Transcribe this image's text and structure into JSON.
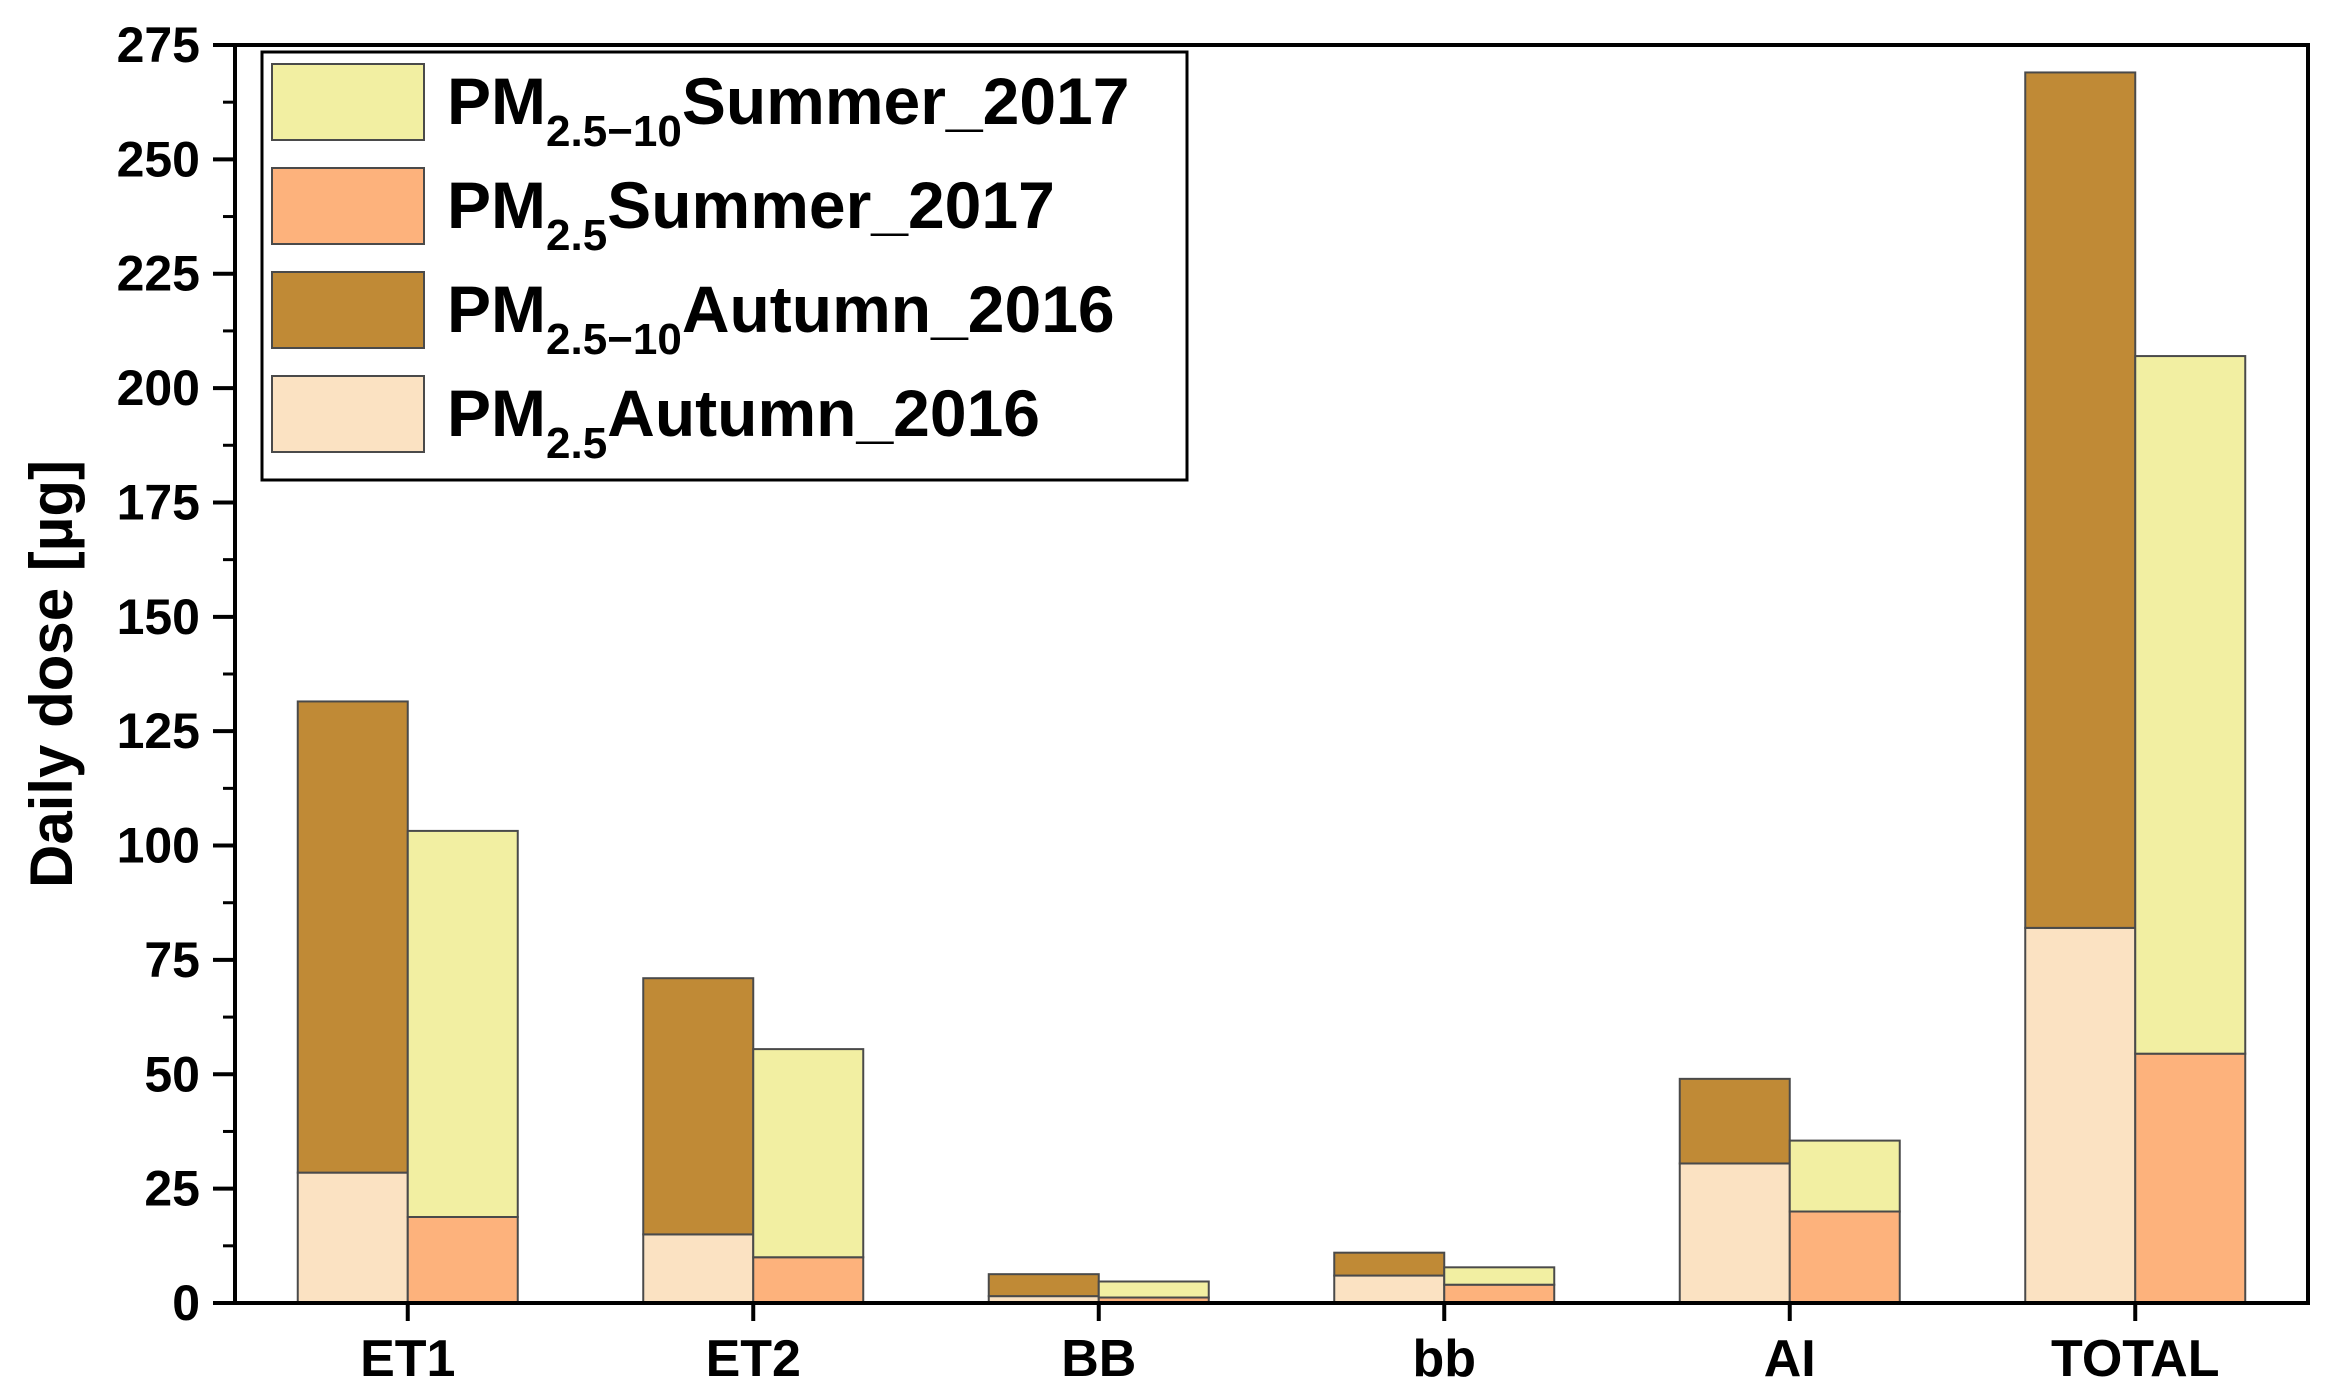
{
  "chart_data": {
    "type": "bar",
    "stacked": true,
    "grouped": true,
    "categories": [
      "ET1",
      "ET2",
      "BB",
      "bb",
      "AI",
      "TOTAL"
    ],
    "ylabel": "Daily dose [µg]",
    "xlabel": "",
    "ylim": [
      0,
      275
    ],
    "yticks": [
      "0",
      "25",
      "50",
      "75",
      "100",
      "125",
      "150",
      "175",
      "200",
      "225",
      "250",
      "275"
    ],
    "grid": false,
    "legend_position": "top-left",
    "groups": [
      {
        "season": "Autumn_2016",
        "stack": [
          {
            "name": "PM2.5Autumn_2016",
            "label_main": "PM",
            "label_sub": "2.5",
            "label_rest": "Autumn_2016",
            "color": "#FBE2C2",
            "values": [
              28.5,
              15,
              1.5,
              6,
              30.5,
              82
            ]
          },
          {
            "name": "PM2.5−10Autumn_2016",
            "label_main": "PM",
            "label_sub": "2.5−10",
            "label_rest": "Autumn_2016",
            "color": "#C08A36",
            "values": [
              103,
              56,
              4.8,
              5,
              18.5,
              187
            ]
          }
        ]
      },
      {
        "season": "Summer_2017",
        "stack": [
          {
            "name": "PM2.5Summer_2017",
            "label_main": "PM",
            "label_sub": "2.5",
            "label_rest": "Summer_2017",
            "color": "#FDB27C",
            "values": [
              18.8,
              10,
              1.2,
              4,
              20,
              54.5
            ]
          },
          {
            "name": "PM2.5−10Summer_2017",
            "label_main": "PM",
            "label_sub": "2.5−10",
            "label_rest": "Summer_2017",
            "color": "#F2EFA2",
            "values": [
              84.4,
              45.5,
              3.5,
              3.8,
              15.5,
              152.5
            ]
          }
        ]
      }
    ],
    "legend_order": [
      "PM2.5−10Summer_2017",
      "PM2.5Summer_2017",
      "PM2.5−10Autumn_2016",
      "PM2.5Autumn_2016"
    ]
  }
}
